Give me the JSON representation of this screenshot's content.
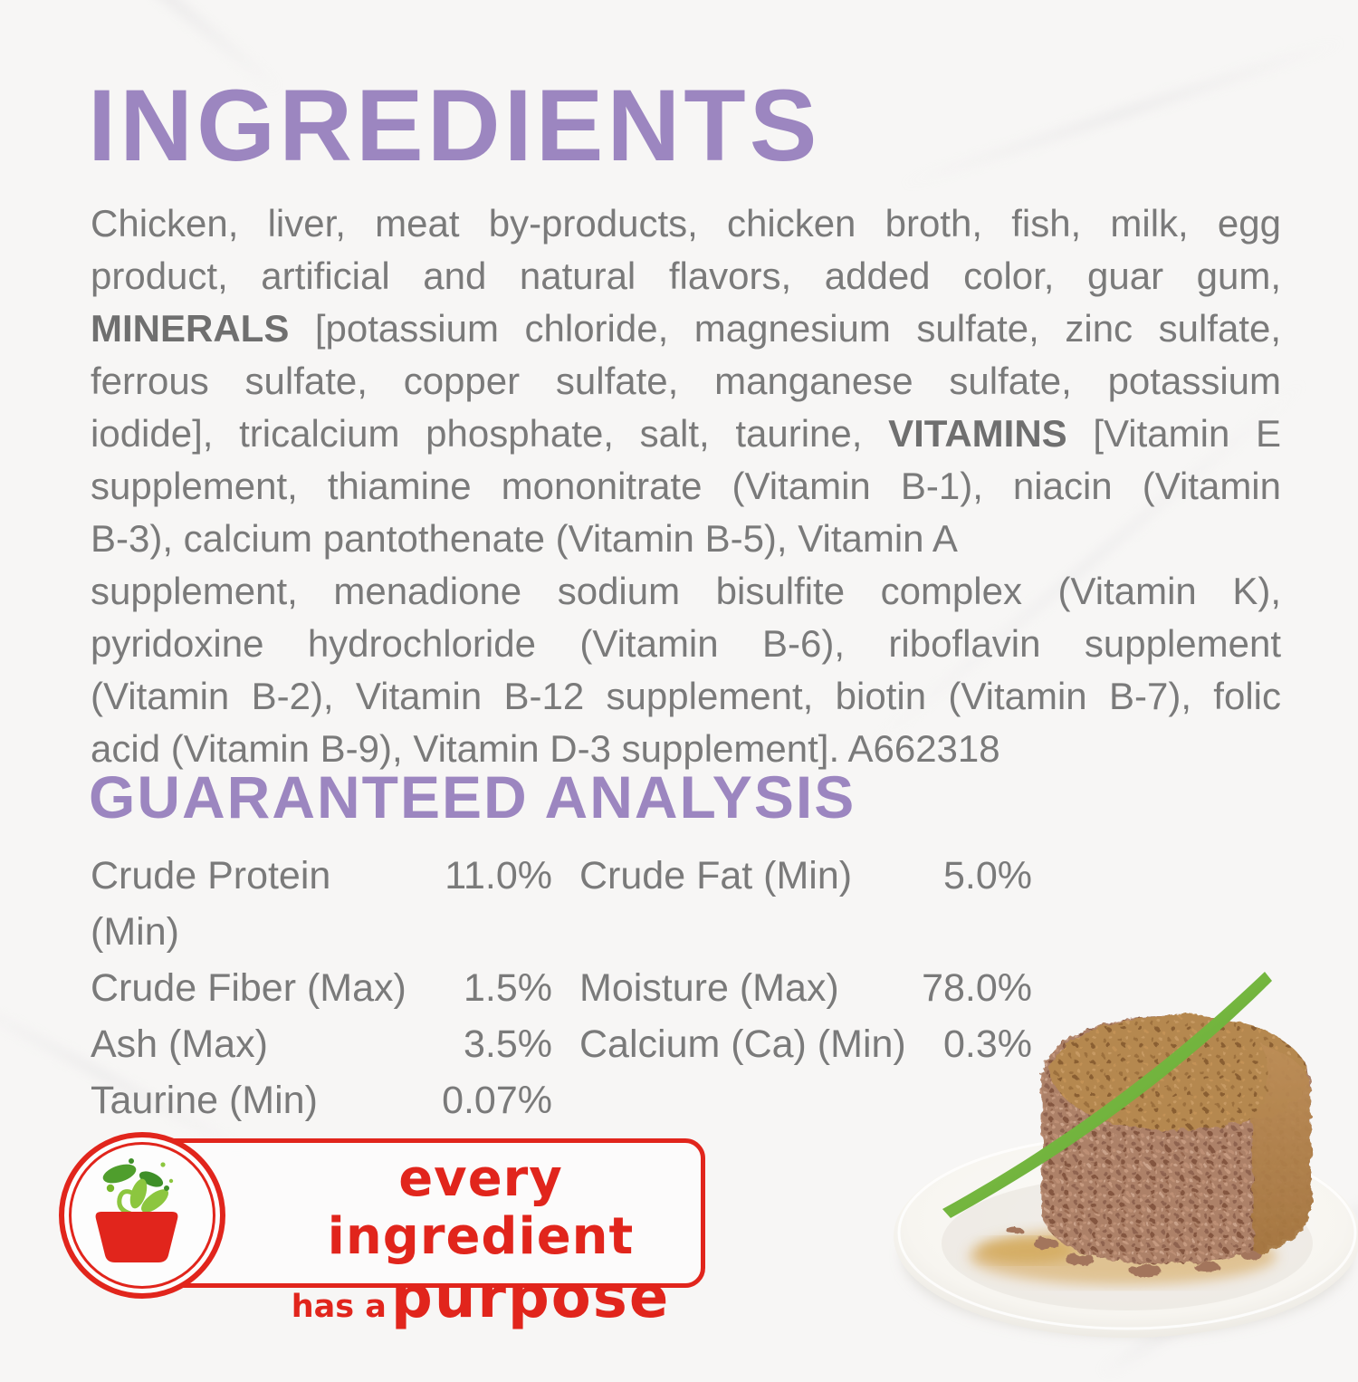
{
  "title": "INGREDIENTS",
  "ingredients": {
    "lines": [
      {
        "justify": true,
        "segments": [
          {
            "t": "Chicken, liver, meat by-products, chicken broth, fish, milk, egg"
          }
        ]
      },
      {
        "justify": true,
        "segments": [
          {
            "t": "product, artificial and natural flavors, added color, guar gum,"
          }
        ]
      },
      {
        "justify": true,
        "segments": [
          {
            "t": "MINERALS",
            "b": true
          },
          {
            "t": " [potassium chloride, magnesium sulfate, zinc sulfate,"
          }
        ]
      },
      {
        "justify": true,
        "segments": [
          {
            "t": "ferrous sulfate, copper sulfate, manganese sulfate, potassium"
          }
        ]
      },
      {
        "justify": true,
        "segments": [
          {
            "t": "iodide], tricalcium phosphate, salt, taurine, "
          },
          {
            "t": "VITAMINS",
            "b": true
          },
          {
            "t": " [Vitamin E"
          }
        ]
      },
      {
        "justify": true,
        "segments": [
          {
            "t": "supplement, thiamine mononitrate (Vitamin B-1), niacin (Vitamin"
          }
        ]
      },
      {
        "justify": false,
        "segments": [
          {
            "t": "B-3), calcium pantothenate (Vitamin B-5), Vitamin A"
          }
        ]
      },
      {
        "justify": true,
        "segments": [
          {
            "t": "supplement, menadione sodium bisulfite complex (Vitamin K),"
          }
        ]
      },
      {
        "justify": true,
        "segments": [
          {
            "t": "pyridoxine hydrochloride (Vitamin B-6), riboflavin supplement"
          }
        ]
      },
      {
        "justify": true,
        "segments": [
          {
            "t": "(Vitamin B-2), Vitamin B-12 supplement, biotin (Vitamin B-7), folic"
          }
        ]
      },
      {
        "justify": false,
        "segments": [
          {
            "t": "acid (Vitamin B-9), Vitamin D-3 supplement]. A662318"
          }
        ]
      }
    ]
  },
  "analysis": {
    "heading": "GUARANTEED ANALYSIS",
    "rows": [
      {
        "label1": "Crude Protein (Min)",
        "value1": "11.0%",
        "label2": "Crude Fat (Min)",
        "value2": "5.0%"
      },
      {
        "label1": "Crude Fiber (Max)",
        "value1": "1.5%",
        "label2": "Moisture (Max)",
        "value2": "78.0%"
      },
      {
        "label1": "Ash (Max)",
        "value1": "3.5%",
        "label2": "Calcium (Ca) (Min)",
        "value2": "0.3%"
      },
      {
        "label1": "Taurine (Min)",
        "value1": "0.07%",
        "label2": "",
        "value2": ""
      }
    ]
  },
  "badge": {
    "line1": "every ingredient",
    "line2_small": "has a",
    "line2_big": "purpose",
    "icon": "bowl-with-leaves-icon"
  },
  "photo": {
    "alt": "wet pet food pate on a white plate with a blade of grass"
  },
  "colors": {
    "heading_purple": "#9c86c0",
    "body_gray": "#7a7a7a",
    "badge_red": "#e1251c",
    "leaf_green_light": "#8cc63f",
    "leaf_green_dark": "#4f9e2d"
  }
}
